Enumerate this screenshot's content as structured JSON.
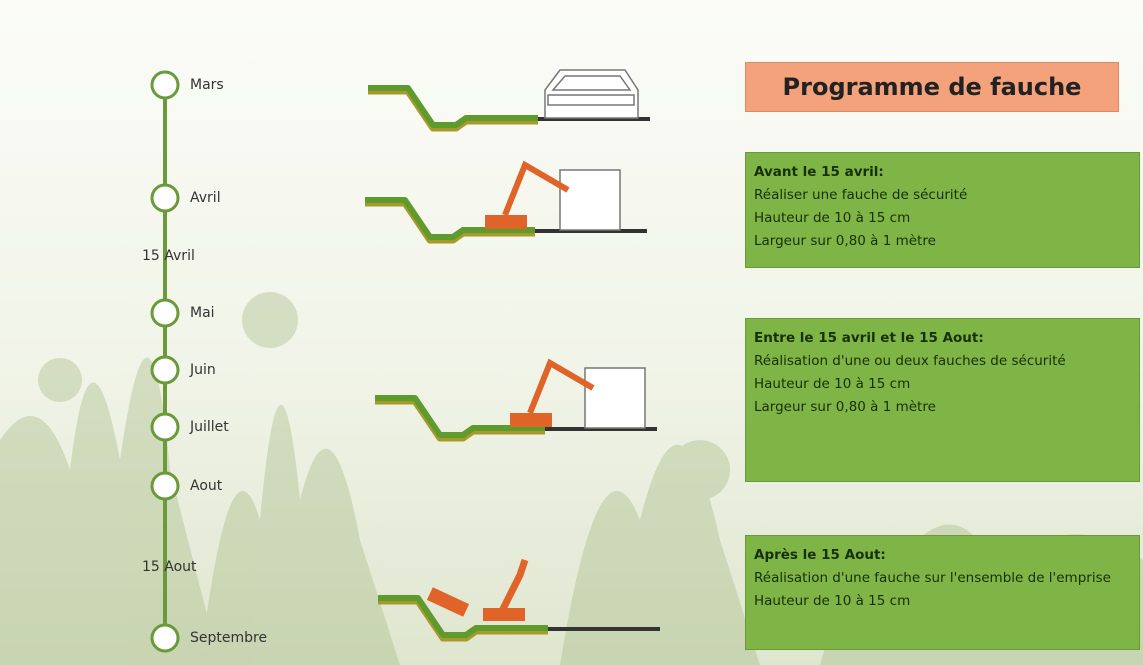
{
  "timeline": {
    "months": [
      "Mars",
      "Avril",
      "Mai",
      "Juin",
      "Juillet",
      "Aout",
      "Septembre"
    ],
    "dates": [
      "15 Avril",
      "15 Aout"
    ]
  },
  "header": {
    "title": "Programme de fauche"
  },
  "boxes": [
    {
      "heading": "Avant le 15 avril:",
      "lines": [
        "Réaliser une fauche de sécurité",
        "Hauteur de 10 à 15 cm",
        "Largeur sur 0,80 à 1 mètre"
      ]
    },
    {
      "heading": "Entre le 15 avril et le 15 Aout:",
      "lines": [
        "Réalisation d'une ou deux fauches de sécurité",
        "Hauteur de 10 à 15 cm",
        "Largeur sur 0,80 à 1 mètre"
      ]
    },
    {
      "heading": "Après le 15 Aout:",
      "lines": [
        "Réalisation d'une fauche sur l'ensemble de l'emprise",
        "Hauteur de 10 à 15 cm"
      ]
    }
  ]
}
